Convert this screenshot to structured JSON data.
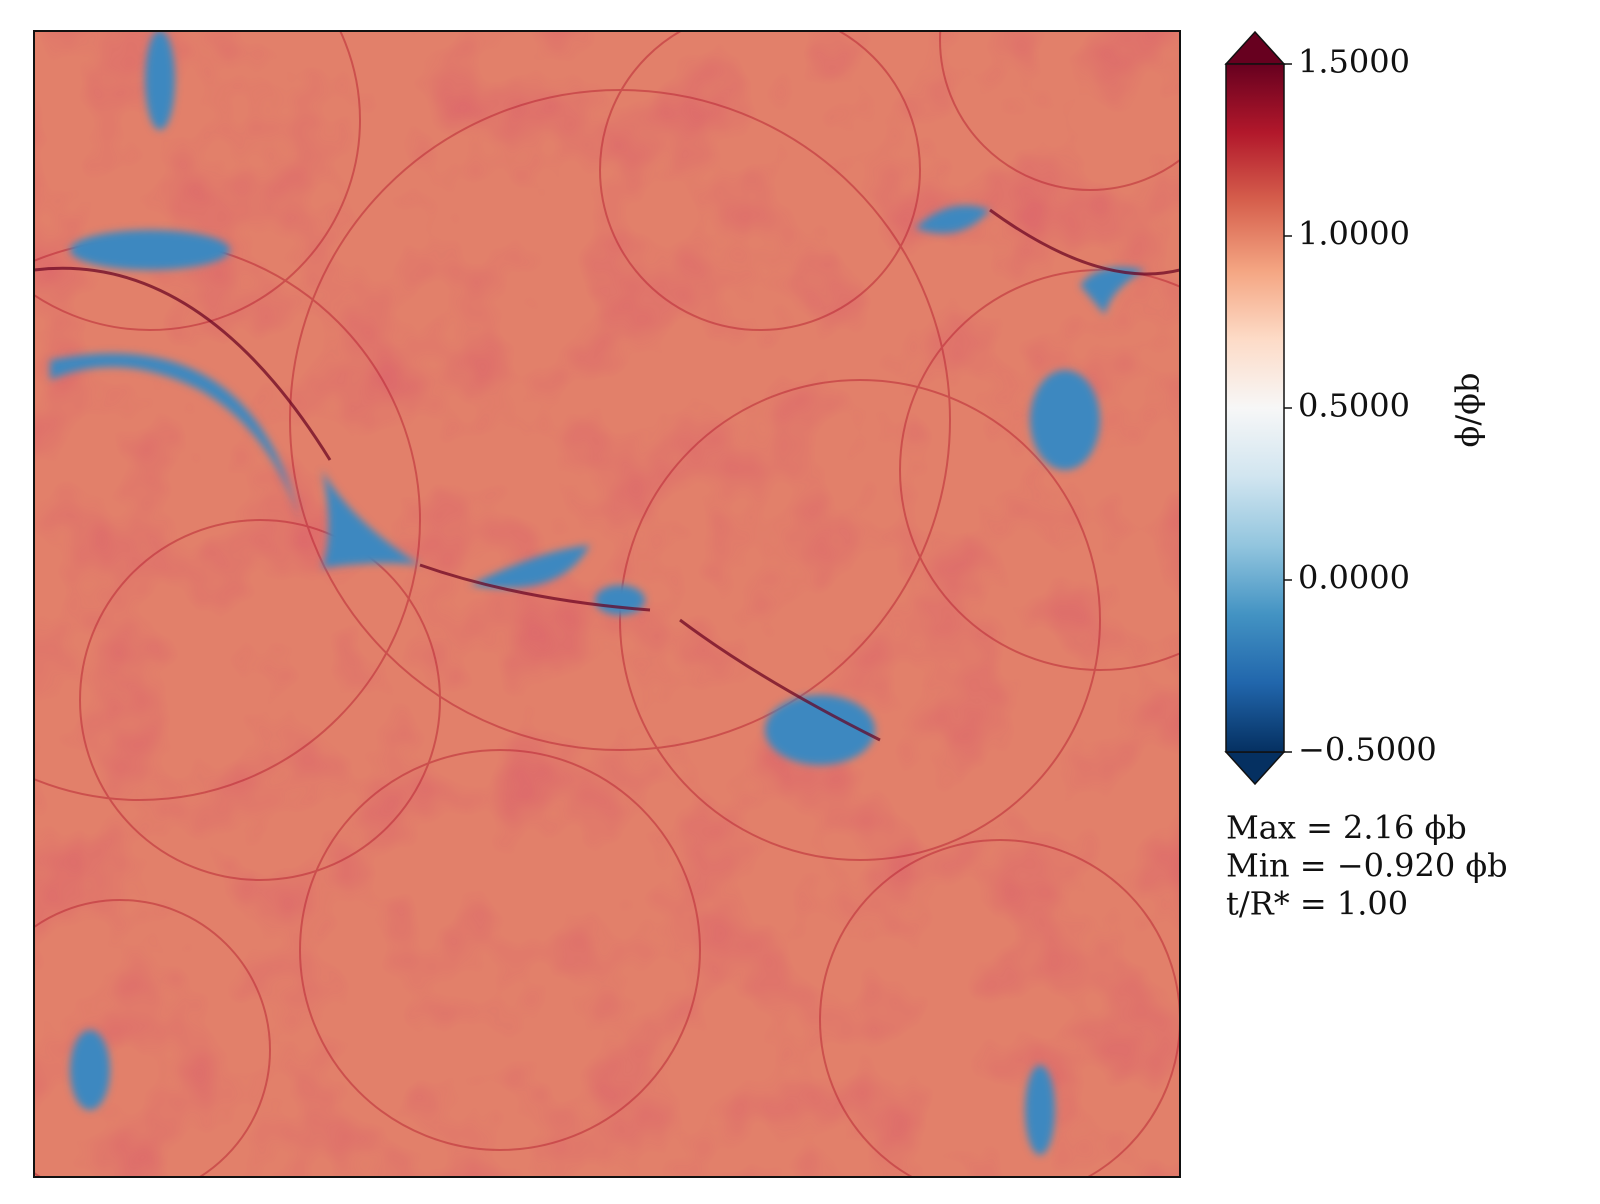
{
  "chart_data": {
    "type": "heatmap",
    "colorbar_label": "ϕ/ϕb",
    "clim": [
      -0.5,
      1.5
    ],
    "cticks": [
      {
        "value": 1.5,
        "label": "1.5000"
      },
      {
        "value": 1.0,
        "label": "1.0000"
      },
      {
        "value": 0.5,
        "label": "0.5000"
      },
      {
        "value": 0.0,
        "label": "0.0000"
      },
      {
        "value": -0.5,
        "label": "−0.5000"
      }
    ],
    "colormap": [
      "#053061",
      "#2166ac",
      "#4393c3",
      "#92c5de",
      "#d1e5f0",
      "#f7f7f7",
      "#fddbc7",
      "#f4a582",
      "#d6604d",
      "#b2182b",
      "#67001f"
    ],
    "extend": "both",
    "annotations": [
      "Max = 2.16 ϕb",
      "Min = −0.920 ϕb",
      "t/R* = 1.00"
    ]
  }
}
